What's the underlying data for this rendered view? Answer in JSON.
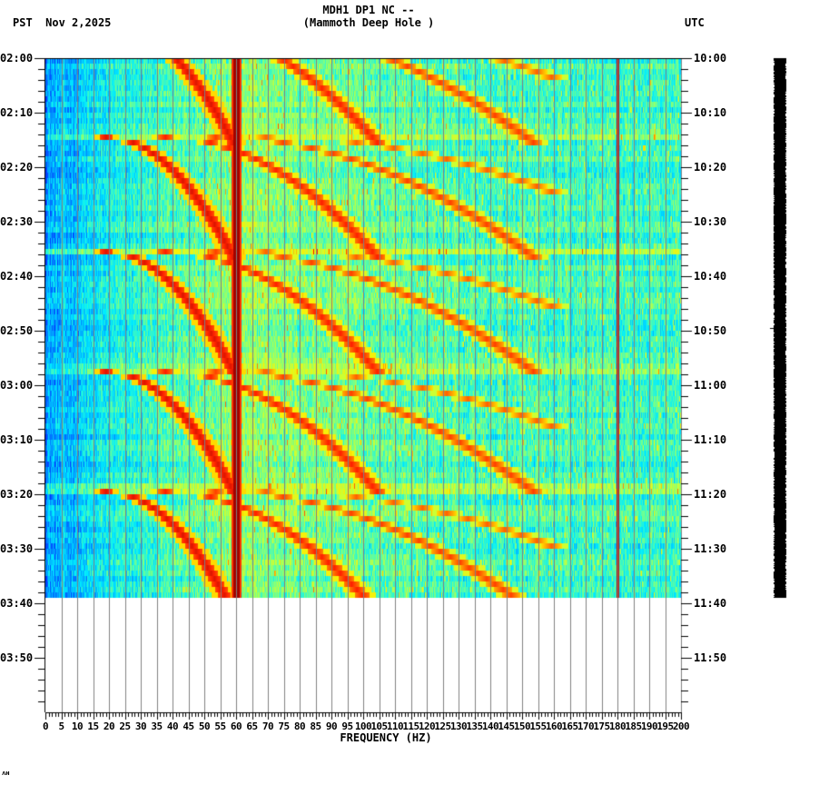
{
  "header": {
    "station_line": "MDH1 DP1 NC --",
    "location_line": "(Mammoth Deep Hole )",
    "left_timezone": "PST",
    "date": "Nov 2,2025",
    "right_timezone": "UTC"
  },
  "corner_mark": "ᴧʜ",
  "chart_data": {
    "type": "heatmap",
    "title": "MDH1 DP1 NC -- (Mammoth Deep Hole )",
    "subtitle": "Nov 2,2025",
    "xlabel": "FREQUENCY (HZ)",
    "ylabel_left": "PST",
    "ylabel_right": "UTC",
    "xlim": [
      0,
      200
    ],
    "x_ticks": [
      0,
      5,
      10,
      15,
      20,
      25,
      30,
      35,
      40,
      45,
      50,
      55,
      60,
      65,
      70,
      75,
      80,
      85,
      90,
      95,
      100,
      105,
      110,
      115,
      120,
      125,
      130,
      135,
      140,
      145,
      150,
      155,
      160,
      165,
      170,
      175,
      180,
      185,
      190,
      195,
      200
    ],
    "y_ticks_left": [
      "02:00",
      "02:10",
      "02:20",
      "02:30",
      "02:40",
      "02:50",
      "03:00",
      "03:10",
      "03:20",
      "03:30",
      "03:40",
      "03:50"
    ],
    "y_ticks_right": [
      "10:00",
      "10:10",
      "10:20",
      "10:30",
      "10:40",
      "10:50",
      "11:00",
      "11:10",
      "11:20",
      "11:30",
      "11:40",
      "11:50"
    ],
    "time_range_pst": [
      "02:00",
      "04:00"
    ],
    "data_end_pst": "03:39",
    "grid": {
      "vertical_every_hz": 5,
      "minor_ticks_every_hz": 1,
      "minor_time_ticks_every_min": 2
    },
    "persistent_lines_hz": [
      {
        "freq": 60,
        "strength": "very strong"
      },
      {
        "freq": 180,
        "strength": "moderate"
      }
    ],
    "colormap": [
      "#0033ff",
      "#0099ff",
      "#00eeff",
      "#66ff99",
      "#ccff33",
      "#ffee00",
      "#ff8800",
      "#ff2200",
      "#990000"
    ],
    "features": "Repeating frequency-sweep arcs (gliding harmonics) recurring every ~20 minutes; low energy (blue) below ~20 Hz, high energy near 60 Hz and harmonic arcs from ~20 to ~140 Hz.",
    "sweep_start_times_min": [
      -7,
      14,
      35,
      57,
      79,
      99
    ]
  },
  "seismogram_trace": {
    "color": "#000000",
    "start_pst": "02:00",
    "end_pst": "03:39"
  }
}
